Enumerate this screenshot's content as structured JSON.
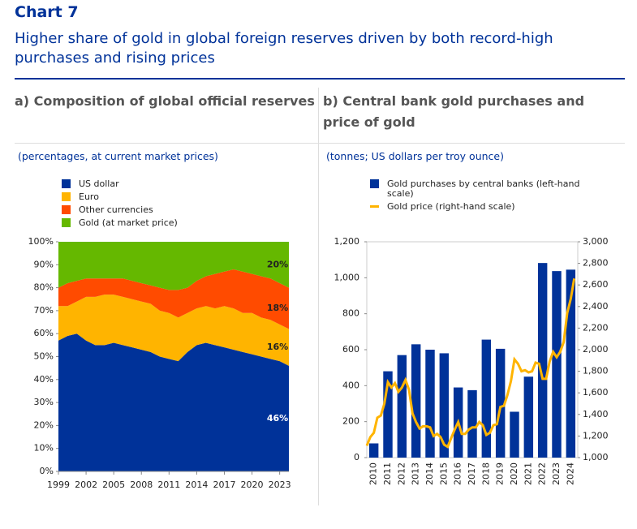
{
  "header": {
    "label": "Chart 7",
    "title": "Higher share of gold in global foreign reserves driven by both record-high purchases and rising prices"
  },
  "chart_data": [
    {
      "type": "area",
      "title": "a) Composition of global official reserves",
      "subtitle": "(percentages, at current market prices)",
      "x": [
        1999,
        2000,
        2001,
        2002,
        2003,
        2004,
        2005,
        2006,
        2007,
        2008,
        2009,
        2010,
        2011,
        2012,
        2013,
        2014,
        2015,
        2016,
        2017,
        2018,
        2019,
        2020,
        2021,
        2022,
        2023,
        2024
      ],
      "xlim": [
        1999,
        2024
      ],
      "xticks": [
        1999,
        2002,
        2005,
        2008,
        2011,
        2014,
        2017,
        2020,
        2023
      ],
      "ylim": [
        0,
        100
      ],
      "yticks": [
        {
          "value": 0,
          "label": "0%"
        },
        {
          "value": 10,
          "label": "10%"
        },
        {
          "value": 20,
          "label": "20%"
        },
        {
          "value": 30,
          "label": "30%"
        },
        {
          "value": 40,
          "label": "40%"
        },
        {
          "value": 50,
          "label": "50%"
        },
        {
          "value": 60,
          "label": "60%"
        },
        {
          "value": 70,
          "label": "70%"
        },
        {
          "value": 80,
          "label": "80%"
        },
        {
          "value": 90,
          "label": "90%"
        },
        {
          "value": 100,
          "label": "100%"
        }
      ],
      "legend": "top-left",
      "series": [
        {
          "name": "US dollar",
          "color": "#003299",
          "values": [
            57,
            59,
            60,
            57,
            55,
            55,
            56,
            55,
            54,
            53,
            52,
            50,
            49,
            48,
            52,
            55,
            56,
            55,
            54,
            53,
            52,
            51,
            50,
            49,
            48,
            46
          ],
          "value_labels": [
            null,
            null,
            null,
            null,
            null,
            null,
            null,
            null,
            null,
            null,
            null,
            null,
            null,
            null,
            null,
            null,
            null,
            null,
            null,
            null,
            null,
            null,
            null,
            null,
            null,
            "46%"
          ]
        },
        {
          "name": "Euro",
          "color": "#ffb400",
          "values": [
            15,
            13,
            14,
            19,
            21,
            22,
            21,
            21,
            21,
            21,
            21,
            20,
            20,
            19,
            17,
            16,
            16,
            16,
            18,
            18,
            17,
            18,
            17,
            17,
            16,
            16
          ],
          "value_labels": [
            null,
            null,
            null,
            null,
            null,
            null,
            null,
            null,
            null,
            null,
            null,
            null,
            null,
            null,
            null,
            null,
            null,
            null,
            null,
            null,
            null,
            null,
            null,
            null,
            null,
            "16%"
          ]
        },
        {
          "name": "Other currencies",
          "color": "#ff4b00",
          "values": [
            8,
            10,
            9,
            8,
            8,
            7,
            7,
            8,
            8,
            8,
            8,
            10,
            10,
            12,
            11,
            12,
            13,
            15,
            15,
            17,
            18,
            17,
            18,
            18,
            18,
            18
          ],
          "value_labels": [
            null,
            null,
            null,
            null,
            null,
            null,
            null,
            null,
            null,
            null,
            null,
            null,
            null,
            null,
            null,
            null,
            null,
            null,
            null,
            null,
            null,
            null,
            null,
            null,
            null,
            "18%"
          ]
        },
        {
          "name": "Gold (at market price)",
          "color": "#65b800",
          "values": [
            20,
            18,
            17,
            16,
            16,
            16,
            16,
            16,
            17,
            18,
            19,
            20,
            21,
            21,
            20,
            17,
            15,
            14,
            13,
            12,
            13,
            14,
            15,
            16,
            18,
            20
          ],
          "value_labels": [
            null,
            null,
            null,
            null,
            null,
            null,
            null,
            null,
            null,
            null,
            null,
            null,
            null,
            null,
            null,
            null,
            null,
            null,
            null,
            null,
            null,
            null,
            null,
            null,
            null,
            "20%"
          ]
        }
      ]
    },
    {
      "type": "bar-line",
      "title": "b) Central bank gold purchases and price of gold",
      "subtitle": "(tonnes; US dollars per troy ounce)",
      "categories": [
        "2010",
        "2011",
        "2012",
        "2013",
        "2014",
        "2015",
        "2016",
        "2017",
        "2018",
        "2019",
        "2020",
        "2021",
        "2022",
        "2023",
        "2024"
      ],
      "ylim": [
        0,
        1200
      ],
      "yticks": [
        0,
        200,
        400,
        600,
        800,
        {
          "value": 1000,
          "label": "1,000"
        },
        {
          "value": 1200,
          "label": "1,200"
        }
      ],
      "y2lim": [
        1000,
        3000
      ],
      "y2ticks": [
        {
          "value": 1000,
          "label": "1,000"
        },
        {
          "value": 1200,
          "label": "1,200"
        },
        {
          "value": 1400,
          "label": "1,400"
        },
        {
          "value": 1600,
          "label": "1,600"
        },
        {
          "value": 1800,
          "label": "1,800"
        },
        {
          "value": 2000,
          "label": "2,000"
        },
        {
          "value": 2200,
          "label": "2,200"
        },
        {
          "value": 2400,
          "label": "2,400"
        },
        {
          "value": 2600,
          "label": "2,600"
        },
        {
          "value": 2800,
          "label": "2,800"
        },
        {
          "value": 3000,
          "label": "3,000"
        }
      ],
      "legend": "top-left",
      "series": [
        {
          "name": "Gold purchases by central banks (left-hand scale)",
          "color": "#003299",
          "type": "bar",
          "values": [
            79,
            480,
            570,
            630,
            600,
            580,
            390,
            375,
            656,
            605,
            255,
            450,
            1082,
            1037,
            1045
          ]
        },
        {
          "name": "Gold price (right-hand scale)",
          "color": "#ffb400",
          "type": "line",
          "axis": "y2",
          "x": [
            2010,
            2010.25,
            2010.5,
            2010.75,
            2011,
            2011.25,
            2011.5,
            2011.75,
            2012,
            2012.25,
            2012.5,
            2012.75,
            2013,
            2013.25,
            2013.5,
            2013.75,
            2014,
            2014.25,
            2014.5,
            2014.75,
            2015,
            2015.25,
            2015.5,
            2015.75,
            2016,
            2016.25,
            2016.5,
            2016.75,
            2017,
            2017.25,
            2017.5,
            2017.75,
            2018,
            2018.25,
            2018.5,
            2018.75,
            2019,
            2019.25,
            2019.5,
            2019.75,
            2020,
            2020.25,
            2020.5,
            2020.75,
            2021,
            2021.25,
            2021.5,
            2021.75,
            2022,
            2022.25,
            2022.5,
            2022.75,
            2023,
            2023.25,
            2023.5,
            2023.75,
            2024,
            2024.25,
            2024.5,
            2024.75
          ],
          "values": [
            1110,
            1190,
            1230,
            1370,
            1390,
            1500,
            1700,
            1650,
            1690,
            1610,
            1650,
            1720,
            1630,
            1410,
            1330,
            1270,
            1290,
            1290,
            1280,
            1200,
            1220,
            1190,
            1120,
            1100,
            1180,
            1260,
            1330,
            1220,
            1220,
            1260,
            1280,
            1280,
            1330,
            1300,
            1210,
            1230,
            1300,
            1310,
            1470,
            1480,
            1580,
            1710,
            1910,
            1870,
            1800,
            1810,
            1790,
            1800,
            1880,
            1870,
            1730,
            1730,
            1890,
            1980,
            1930,
            1980,
            2070,
            2340,
            2470,
            2660
          ]
        }
      ]
    }
  ]
}
